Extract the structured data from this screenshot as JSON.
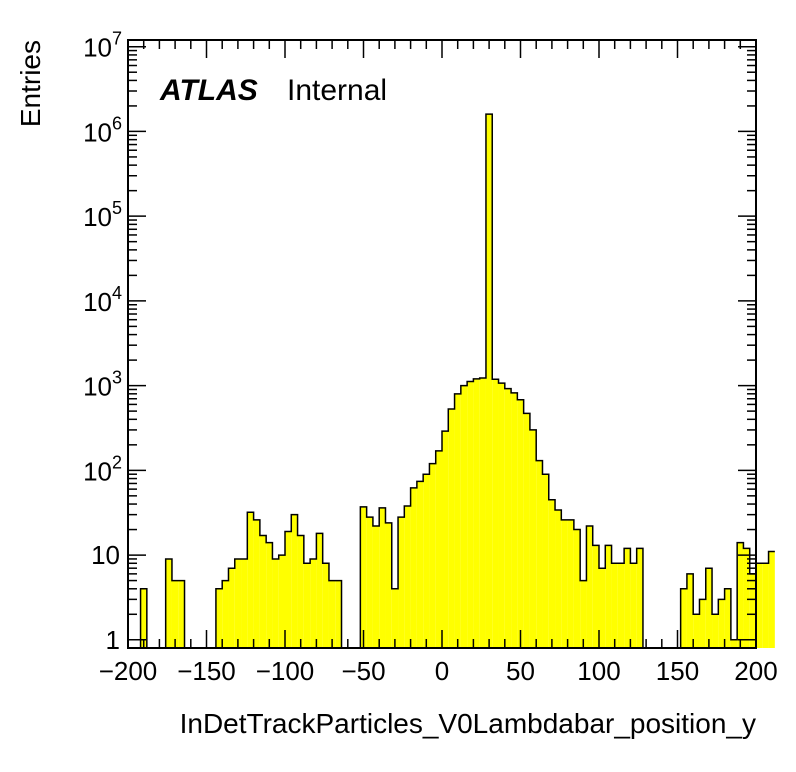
{
  "chart_data": {
    "type": "bar",
    "histogram": true,
    "xlabel": "InDetTrackParticles_V0Lambdabar_position_y",
    "ylabel": "Entries",
    "annotation": {
      "atlas": "ATLAS",
      "status": "Internal"
    },
    "xlim": [
      -200,
      200
    ],
    "ylim": [
      0.8,
      12000000
    ],
    "yscale": "log",
    "bin_width": 4,
    "x_ticks": [
      -200,
      -150,
      -100,
      -50,
      0,
      50,
      100,
      150,
      200
    ],
    "x_tick_labels": [
      "−200",
      "−150",
      "−100",
      "−50",
      "0",
      "50",
      "100",
      "150",
      "200"
    ],
    "y_ticks": [
      {
        "value": 1,
        "base": "1",
        "exp": ""
      },
      {
        "value": 10,
        "base": "10",
        "exp": ""
      },
      {
        "value": 100,
        "base": "10",
        "exp": "2"
      },
      {
        "value": 1000,
        "base": "10",
        "exp": "3"
      },
      {
        "value": 10000,
        "base": "10",
        "exp": "4"
      },
      {
        "value": 100000,
        "base": "10",
        "exp": "5"
      },
      {
        "value": 1000000,
        "base": "10",
        "exp": "6"
      },
      {
        "value": 10000000,
        "base": "10",
        "exp": "7"
      }
    ],
    "fill_color": "#ffff00",
    "line_color": "#000000",
    "values": [
      0,
      0,
      4,
      0,
      0,
      0,
      9,
      5,
      5,
      0,
      0,
      0,
      0,
      0,
      4,
      5,
      7,
      9,
      9,
      32,
      26,
      17,
      14,
      9,
      10,
      19,
      30,
      17,
      8,
      9,
      18,
      8,
      5,
      5,
      0,
      0,
      0,
      37,
      28,
      22,
      36,
      24,
      4,
      28,
      38,
      62,
      74,
      90,
      120,
      170,
      290,
      530,
      800,
      1000,
      1120,
      1200,
      1230,
      1600000,
      1190,
      1070,
      920,
      820,
      680,
      470,
      300,
      130,
      90,
      45,
      34,
      26,
      26,
      20,
      5,
      22,
      13,
      7,
      13,
      8,
      8,
      12,
      8,
      12,
      0,
      0,
      0,
      0,
      0,
      0,
      4,
      6,
      2,
      3,
      7,
      2,
      3,
      4,
      1,
      14,
      12,
      6,
      8,
      8,
      11
    ]
  }
}
